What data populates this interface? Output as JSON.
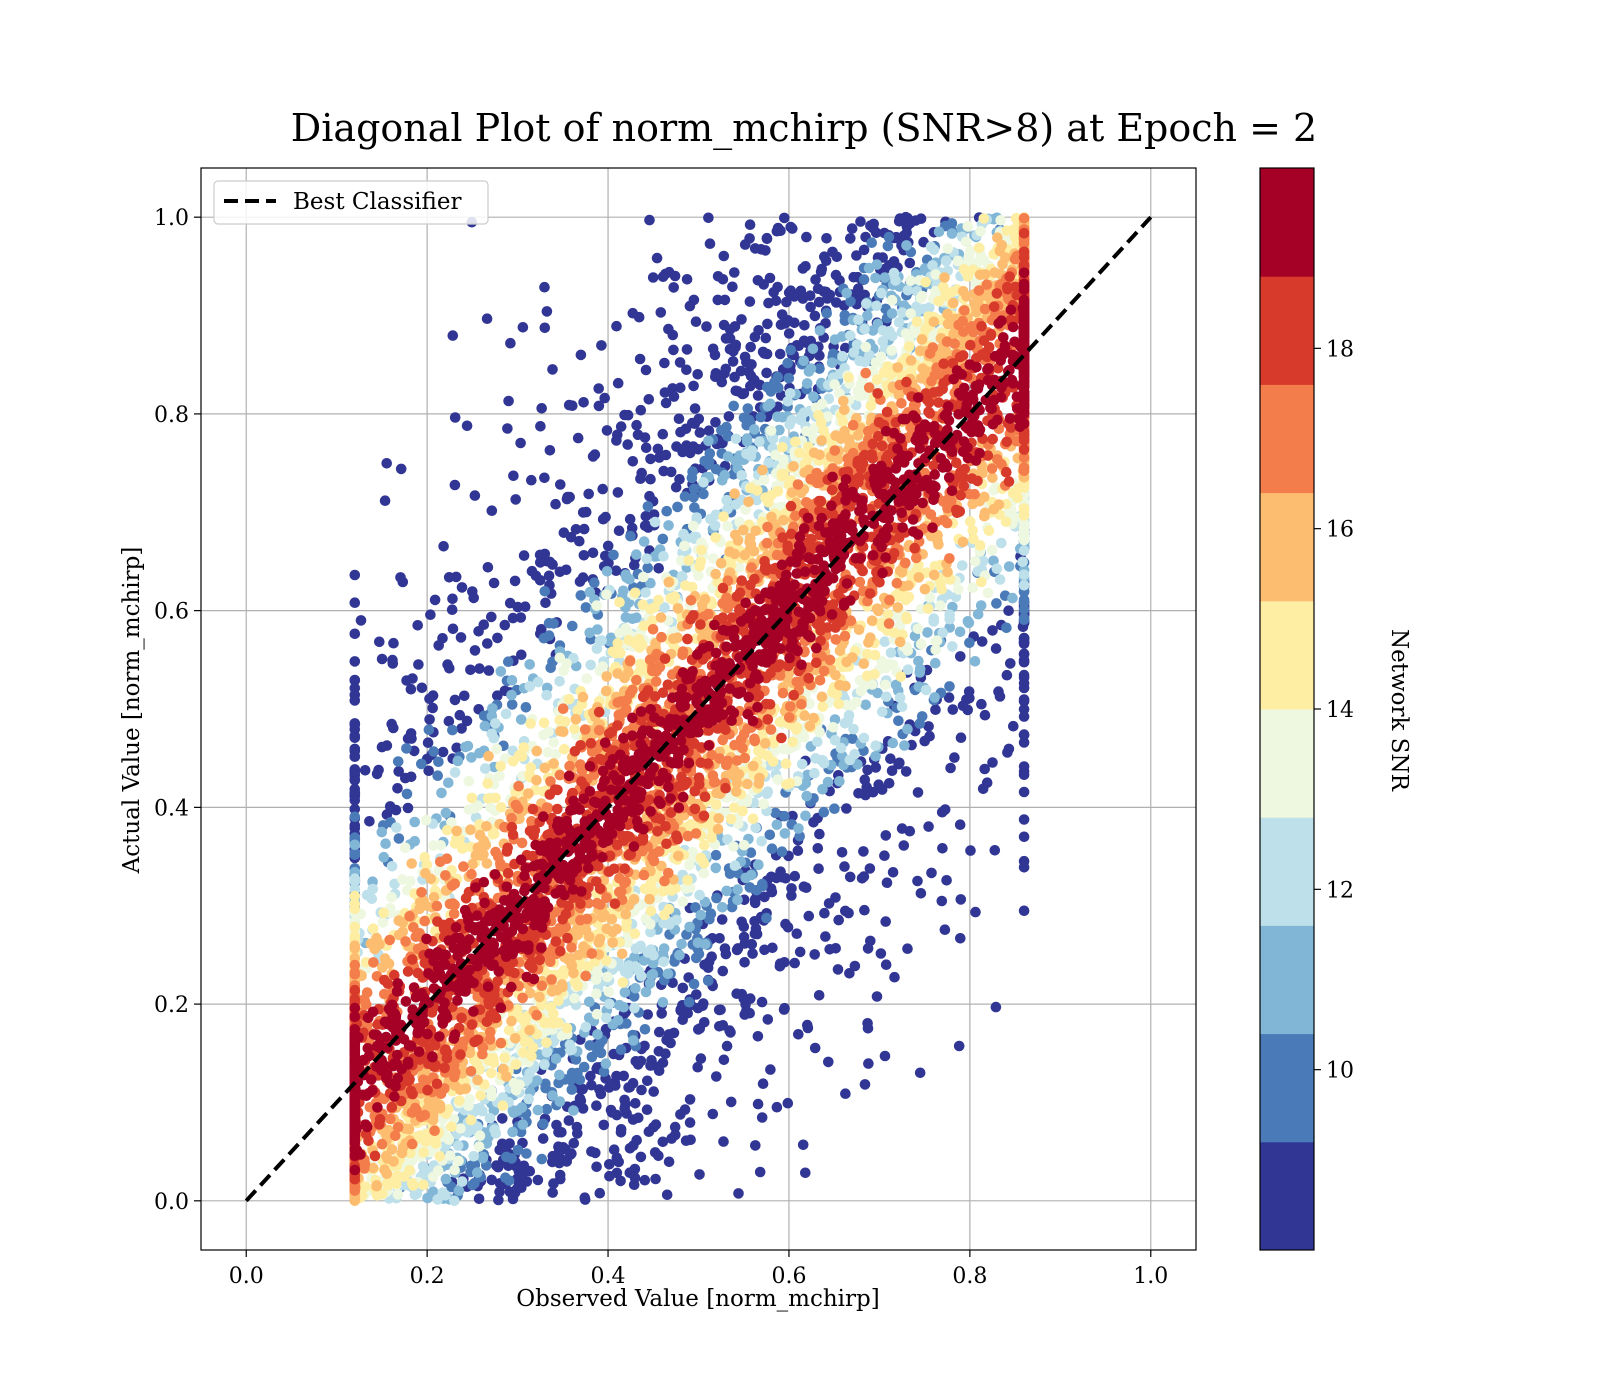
{
  "chart_data": {
    "type": "scatter",
    "title": "Diagonal Plot of norm_mchirp (SNR>8) at Epoch = 2",
    "xlabel": "Observed Value [norm_mchirp]",
    "ylabel": "Actual Value [norm_mchirp]",
    "xlim": [
      -0.05,
      1.05
    ],
    "ylim": [
      -0.05,
      1.05
    ],
    "xticks": [
      "0.0",
      "0.2",
      "0.4",
      "0.6",
      "0.8",
      "1.0"
    ],
    "yticks": [
      "0.0",
      "0.2",
      "0.4",
      "0.6",
      "0.8",
      "1.0"
    ],
    "grid": true,
    "legend": {
      "position": "top-left",
      "entries": [
        {
          "label": "Best Classifier",
          "style": "dashed",
          "color": "#000000"
        }
      ]
    },
    "reference_line": {
      "name": "Best Classifier",
      "x": [
        0.0,
        1.0
      ],
      "y": [
        0.0,
        1.0
      ]
    },
    "colorbar": {
      "label": "Network SNR",
      "range": [
        8,
        20
      ],
      "ticks": [
        "10",
        "12",
        "14",
        "16",
        "18"
      ],
      "bins": [
        {
          "from": 8,
          "to": 9.2,
          "color": "#313695"
        },
        {
          "from": 9.2,
          "to": 10.4,
          "color": "#4a7ab7"
        },
        {
          "from": 10.4,
          "to": 11.6,
          "color": "#81b6d6"
        },
        {
          "from": 11.6,
          "to": 12.8,
          "color": "#bde0ea"
        },
        {
          "from": 12.8,
          "to": 14.0,
          "color": "#eef7e0"
        },
        {
          "from": 14.0,
          "to": 15.2,
          "color": "#fdeea4"
        },
        {
          "from": 15.2,
          "to": 16.4,
          "color": "#fdbd71"
        },
        {
          "from": 16.4,
          "to": 17.6,
          "color": "#f47d4c"
        },
        {
          "from": 17.6,
          "to": 18.8,
          "color": "#d73a2b"
        },
        {
          "from": 18.8,
          "to": 20.0,
          "color": "#a50026"
        }
      ]
    },
    "scatter_region": {
      "description_values": "points clustered around y=x; x spans ~0.12–0.86, y spans ~0.0–1.0; high SNR (red) near diagonal, low SNR (blue) further away",
      "x_range": [
        0.12,
        0.86
      ],
      "y_range": [
        0.0,
        1.0
      ],
      "spread_high_snr": 0.08,
      "spread_low_snr": 0.22,
      "point_count": 9000
    }
  }
}
